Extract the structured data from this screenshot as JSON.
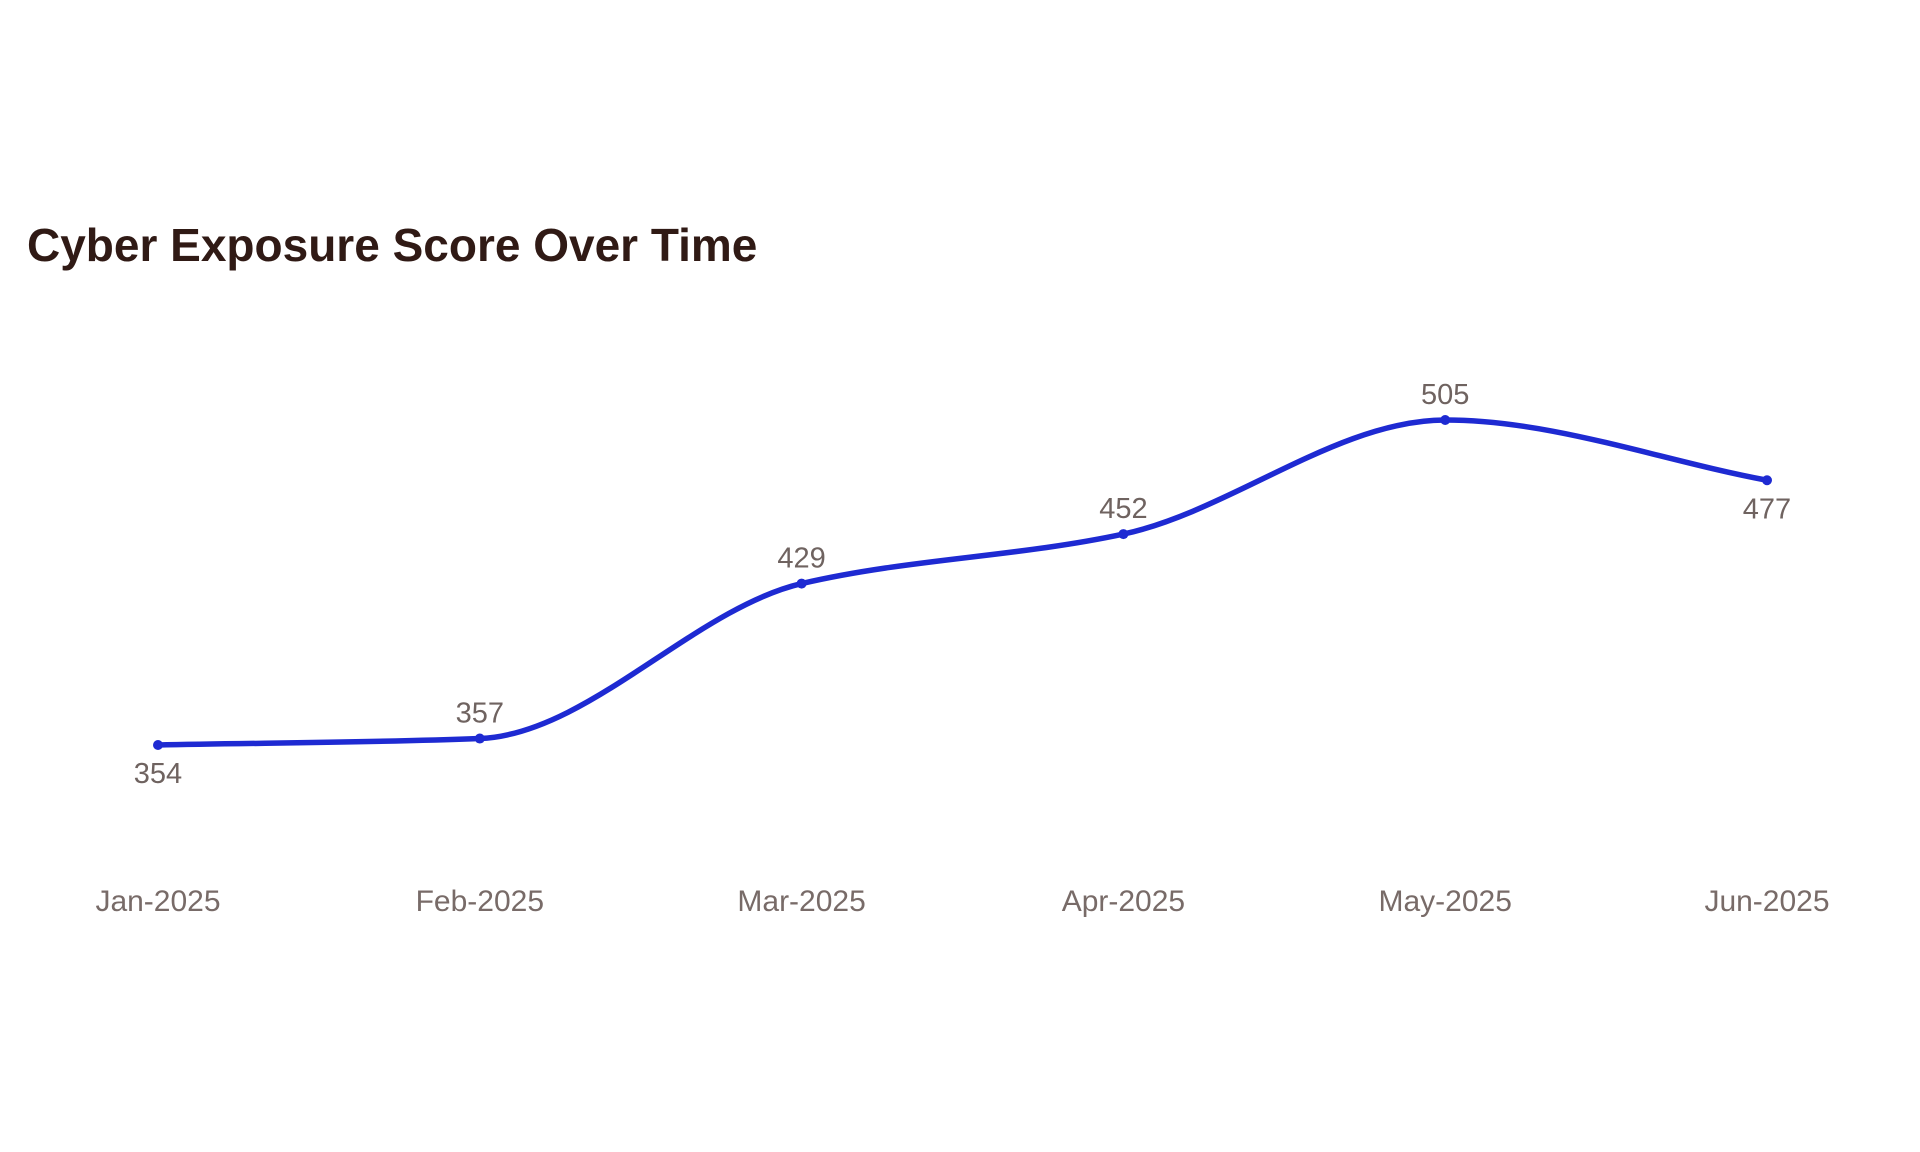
{
  "chart_data": {
    "type": "line",
    "title": "Cyber Exposure Score Over Time",
    "categories": [
      "Jan-2025",
      "Feb-2025",
      "Mar-2025",
      "Apr-2025",
      "May-2025",
      "Jun-2025"
    ],
    "values": [
      354,
      357,
      429,
      452,
      505,
      477
    ],
    "data_labels": [
      "354",
      "357",
      "429",
      "452",
      "505",
      "477"
    ],
    "label_positions": [
      "below",
      "above",
      "above",
      "above",
      "above",
      "below"
    ],
    "smooth": true,
    "markers": true,
    "grid": false,
    "legend": false,
    "y_axis_visible": false,
    "x_axis_labels_visible": true,
    "colors": {
      "line": "#1e2ad2",
      "marker": "#1e2ad2",
      "data_label": "#6f6360",
      "axis_label": "#786b68",
      "title": "#301a15",
      "background": "#ffffff"
    }
  }
}
